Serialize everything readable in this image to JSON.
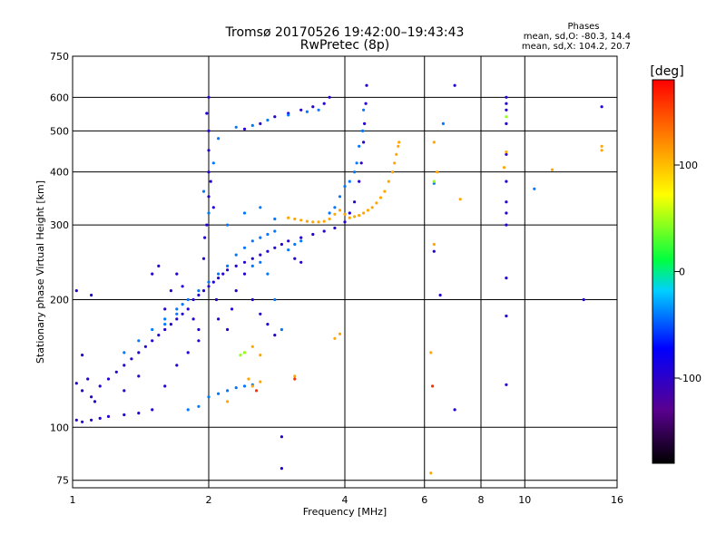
{
  "chart_data": {
    "type": "scatter",
    "title": "Tromsø 20170526 19:42:00–19:43:43",
    "subtitle": "RwPretec (8p)",
    "xlabel": "Frequency [MHz]",
    "ylabel": "Stationary phase Virtual Height [km]",
    "x_scale": "log",
    "y_scale": "log",
    "xlim": [
      1,
      16
    ],
    "ylim": [
      72,
      750
    ],
    "x_ticks": [
      1,
      2,
      4,
      6,
      8,
      10,
      16
    ],
    "x_tick_labels": [
      "1",
      "2",
      "4",
      "6",
      "8",
      "10",
      "16"
    ],
    "y_ticks": [
      75,
      100,
      200,
      300,
      400,
      500,
      600,
      750
    ],
    "y_tick_labels": [
      "75",
      "100",
      "200",
      "300",
      "400",
      "500",
      "600",
      "750"
    ],
    "grid": true,
    "stats": {
      "heading": "Phases",
      "line1": "mean, sd,O: -80.3, 14.4",
      "line2": "mean, sd,X: 104.2, 20.7"
    },
    "colorbar": {
      "label": "[deg]",
      "range": [
        -180,
        180
      ],
      "ticks": [
        100,
        0,
        -100
      ],
      "tick_labels": [
        "100",
        "0",
        "-100"
      ],
      "colormap": "rainbow",
      "stops": [
        "#000000",
        "#5a0090",
        "#0000ff",
        "#00d0ff",
        "#00ff40",
        "#ffff00",
        "#ff8000",
        "#ff0000"
      ]
    },
    "series": [
      {
        "phase": -95,
        "points": [
          [
            1.02,
            104
          ],
          [
            1.05,
            103
          ],
          [
            1.1,
            104
          ],
          [
            1.15,
            105
          ],
          [
            1.2,
            106
          ],
          [
            1.3,
            107
          ],
          [
            1.4,
            108
          ],
          [
            1.5,
            110
          ],
          [
            1.02,
            127
          ],
          [
            1.05,
            122
          ],
          [
            1.1,
            118
          ],
          [
            1.15,
            125
          ],
          [
            1.2,
            130
          ],
          [
            1.25,
            135
          ],
          [
            1.3,
            140
          ],
          [
            1.35,
            145
          ],
          [
            1.4,
            150
          ],
          [
            1.45,
            155
          ],
          [
            1.5,
            160
          ],
          [
            1.55,
            165
          ],
          [
            1.6,
            170
          ],
          [
            1.65,
            175
          ],
          [
            1.7,
            180
          ],
          [
            1.75,
            185
          ],
          [
            1.8,
            190
          ],
          [
            1.85,
            200
          ],
          [
            1.9,
            205
          ],
          [
            1.95,
            210
          ],
          [
            2.0,
            215
          ],
          [
            2.05,
            220
          ],
          [
            2.1,
            225
          ],
          [
            2.15,
            230
          ],
          [
            2.2,
            235
          ],
          [
            2.3,
            240
          ],
          [
            2.4,
            245
          ],
          [
            2.5,
            250
          ],
          [
            2.6,
            255
          ],
          [
            2.7,
            260
          ],
          [
            2.8,
            265
          ],
          [
            2.9,
            270
          ],
          [
            3.0,
            275
          ],
          [
            3.2,
            280
          ],
          [
            3.4,
            285
          ],
          [
            3.6,
            290
          ],
          [
            3.8,
            295
          ],
          [
            4.0,
            305
          ],
          [
            4.1,
            320
          ],
          [
            4.2,
            340
          ],
          [
            4.3,
            380
          ],
          [
            4.35,
            420
          ],
          [
            4.4,
            470
          ],
          [
            4.42,
            520
          ],
          [
            4.45,
            580
          ],
          [
            4.47,
            640
          ],
          [
            1.02,
            210
          ],
          [
            1.1,
            205
          ],
          [
            1.05,
            148
          ],
          [
            1.08,
            130
          ],
          [
            1.12,
            115
          ],
          [
            1.3,
            122
          ],
          [
            1.4,
            132
          ],
          [
            1.6,
            125
          ],
          [
            1.7,
            140
          ],
          [
            1.8,
            150
          ],
          [
            1.9,
            160
          ],
          [
            1.95,
            250
          ],
          [
            1.98,
            300
          ],
          [
            2.0,
            350
          ],
          [
            2.0,
            400
          ],
          [
            2.0,
            450
          ],
          [
            2.0,
            500
          ],
          [
            1.98,
            550
          ],
          [
            2.0,
            600
          ],
          [
            2.02,
            380
          ],
          [
            2.05,
            330
          ],
          [
            1.96,
            280
          ],
          [
            2.08,
            200
          ],
          [
            2.1,
            180
          ],
          [
            2.2,
            170
          ],
          [
            2.25,
            190
          ],
          [
            2.3,
            210
          ],
          [
            2.4,
            230
          ],
          [
            2.5,
            200
          ],
          [
            2.6,
            185
          ],
          [
            2.7,
            175
          ],
          [
            2.8,
            165
          ],
          [
            1.5,
            230
          ],
          [
            1.55,
            240
          ],
          [
            1.6,
            190
          ],
          [
            1.65,
            210
          ],
          [
            1.7,
            230
          ],
          [
            1.75,
            215
          ],
          [
            1.85,
            180
          ],
          [
            1.9,
            170
          ],
          [
            2.4,
            505
          ],
          [
            2.6,
            520
          ],
          [
            2.8,
            540
          ],
          [
            3.0,
            550
          ],
          [
            3.2,
            560
          ],
          [
            3.4,
            570
          ],
          [
            3.6,
            580
          ],
          [
            3.7,
            600
          ],
          [
            7.0,
            640
          ],
          [
            9.1,
            600
          ],
          [
            9.1,
            580
          ],
          [
            9.1,
            560
          ],
          [
            9.1,
            520
          ],
          [
            9.1,
            440
          ],
          [
            9.1,
            380
          ],
          [
            9.1,
            340
          ],
          [
            9.1,
            320
          ],
          [
            9.1,
            300
          ],
          [
            9.1,
            225
          ],
          [
            9.1,
            183
          ],
          [
            9.1,
            126
          ],
          [
            6.3,
            260
          ],
          [
            6.5,
            205
          ],
          [
            7.0,
            110
          ],
          [
            2.9,
            95
          ],
          [
            2.9,
            80
          ],
          [
            14.8,
            570
          ],
          [
            13.5,
            200
          ],
          [
            3.1,
            250
          ],
          [
            3.2,
            245
          ]
        ]
      },
      {
        "phase": -40,
        "points": [
          [
            1.3,
            150
          ],
          [
            1.4,
            160
          ],
          [
            1.5,
            170
          ],
          [
            1.6,
            180
          ],
          [
            1.7,
            190
          ],
          [
            1.8,
            200
          ],
          [
            1.9,
            210
          ],
          [
            2.0,
            220
          ],
          [
            2.1,
            230
          ],
          [
            2.2,
            240
          ],
          [
            2.3,
            255
          ],
          [
            2.4,
            265
          ],
          [
            2.5,
            275
          ],
          [
            2.6,
            280
          ],
          [
            2.7,
            285
          ],
          [
            2.8,
            290
          ],
          [
            2.2,
            300
          ],
          [
            2.4,
            320
          ],
          [
            2.6,
            330
          ],
          [
            2.8,
            310
          ],
          [
            2.0,
            320
          ],
          [
            1.95,
            360
          ],
          [
            2.05,
            420
          ],
          [
            2.1,
            480
          ],
          [
            2.3,
            510
          ],
          [
            2.5,
            515
          ],
          [
            2.7,
            530
          ],
          [
            3.0,
            545
          ],
          [
            3.3,
            555
          ],
          [
            3.5,
            560
          ],
          [
            4.4,
            560
          ],
          [
            4.38,
            500
          ],
          [
            4.3,
            460
          ],
          [
            4.25,
            420
          ],
          [
            4.2,
            400
          ],
          [
            4.1,
            380
          ],
          [
            4.0,
            370
          ],
          [
            3.9,
            350
          ],
          [
            3.8,
            330
          ],
          [
            3.7,
            320
          ],
          [
            1.8,
            110
          ],
          [
            1.9,
            112
          ],
          [
            2.0,
            118
          ],
          [
            2.1,
            120
          ],
          [
            2.2,
            122
          ],
          [
            2.3,
            124
          ],
          [
            2.4,
            125
          ],
          [
            2.5,
            126
          ],
          [
            6.3,
            376
          ],
          [
            6.6,
            520
          ],
          [
            10.5,
            365
          ],
          [
            2.9,
            170
          ],
          [
            2.8,
            200
          ],
          [
            2.7,
            230
          ],
          [
            2.6,
            245
          ],
          [
            2.5,
            240
          ],
          [
            3.0,
            262
          ],
          [
            3.1,
            270
          ],
          [
            3.2,
            275
          ],
          [
            1.6,
            175
          ],
          [
            1.7,
            185
          ],
          [
            1.75,
            195
          ]
        ]
      },
      {
        "phase": 110,
        "points": [
          [
            3.0,
            312
          ],
          [
            3.1,
            310
          ],
          [
            3.2,
            308
          ],
          [
            3.3,
            306
          ],
          [
            3.4,
            305
          ],
          [
            3.5,
            305
          ],
          [
            3.6,
            306
          ],
          [
            3.7,
            310
          ],
          [
            3.8,
            318
          ],
          [
            3.9,
            325
          ],
          [
            4.0,
            318
          ],
          [
            4.1,
            312
          ],
          [
            4.2,
            314
          ],
          [
            4.3,
            316
          ],
          [
            4.4,
            320
          ],
          [
            4.5,
            325
          ],
          [
            4.6,
            330
          ],
          [
            4.7,
            338
          ],
          [
            4.8,
            348
          ],
          [
            4.9,
            360
          ],
          [
            5.0,
            380
          ],
          [
            5.1,
            400
          ],
          [
            5.15,
            420
          ],
          [
            5.2,
            440
          ],
          [
            5.25,
            460
          ],
          [
            5.27,
            470
          ],
          [
            2.4,
            150
          ],
          [
            2.5,
            155
          ],
          [
            2.6,
            148
          ],
          [
            2.45,
            130
          ],
          [
            2.5,
            125
          ],
          [
            2.6,
            128
          ],
          [
            3.1,
            132
          ],
          [
            6.3,
            470
          ],
          [
            6.3,
            270
          ],
          [
            6.2,
            150
          ],
          [
            6.4,
            400
          ],
          [
            11.5,
            405
          ],
          [
            14.8,
            460
          ],
          [
            14.8,
            450
          ],
          [
            7.2,
            345
          ],
          [
            9.0,
            410
          ],
          [
            9.1,
            446
          ],
          [
            3.8,
            162
          ],
          [
            3.9,
            166
          ],
          [
            6.2,
            78
          ],
          [
            2.2,
            115
          ]
        ]
      },
      {
        "phase": 45,
        "points": [
          [
            2.35,
            148
          ],
          [
            2.4,
            150
          ],
          [
            6.3,
            380
          ],
          [
            9.1,
            540
          ]
        ]
      },
      {
        "phase": 160,
        "points": [
          [
            3.1,
            130
          ],
          [
            6.25,
            125
          ],
          [
            2.55,
            122
          ]
        ]
      }
    ]
  }
}
